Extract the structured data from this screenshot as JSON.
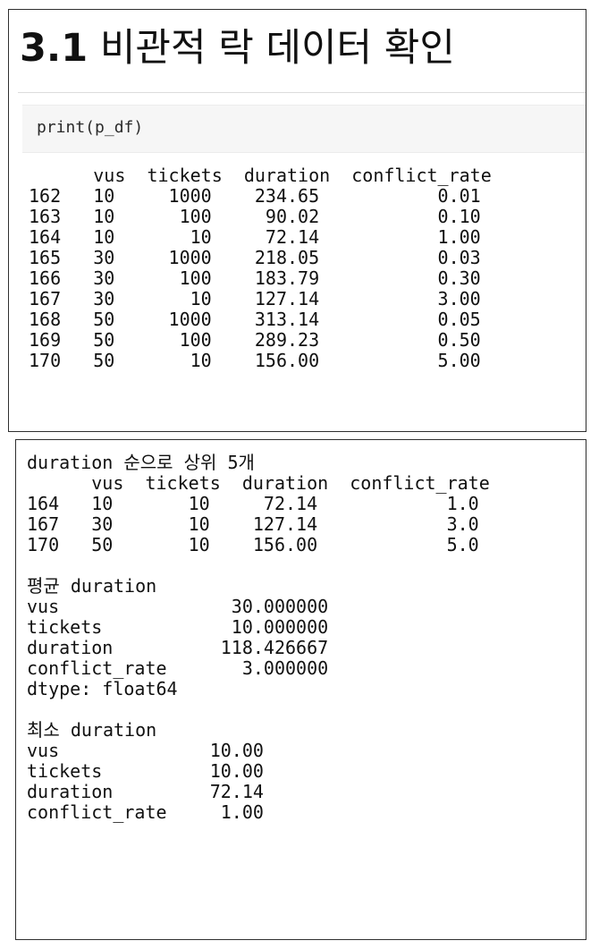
{
  "heading": {
    "number": "3.1",
    "text": "비관적 락 데이터 확인"
  },
  "code_cell": {
    "code": "print(p_df)"
  },
  "output1": {
    "lines": [
      "      vus  tickets  duration  conflict_rate",
      "162   10     1000    234.65           0.01",
      "163   10      100     90.02           0.10",
      "164   10       10     72.14           1.00",
      "165   30     1000    218.05           0.03",
      "166   30      100    183.79           0.30",
      "167   30       10    127.14           3.00",
      "168   50     1000    313.14           0.05",
      "169   50      100    289.23           0.50",
      "170   50       10    156.00           5.00"
    ]
  },
  "output2": {
    "lines": [
      "duration 순으로 상위 5개",
      "      vus  tickets  duration  conflict_rate",
      "164   10       10     72.14            1.0",
      "167   30       10    127.14            3.0",
      "170   50       10    156.00            5.0",
      "",
      "평균 duration",
      "vus                30.000000",
      "tickets            10.000000",
      "duration          118.426667",
      "conflict_rate       3.000000",
      "dtype: float64",
      "",
      "최소 duration",
      "vus              10.00",
      "tickets          10.00",
      "duration         72.14",
      "conflict_rate     1.00"
    ]
  }
}
